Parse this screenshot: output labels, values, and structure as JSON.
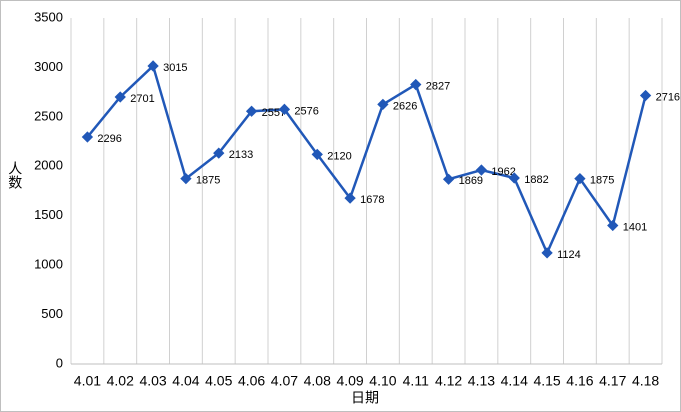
{
  "chart_data": {
    "type": "line",
    "x_label": "日期",
    "y_label": "人数",
    "categories": [
      "4.01",
      "4.02",
      "4.03",
      "4.04",
      "4.05",
      "4.06",
      "4.07",
      "4.08",
      "4.09",
      "4.10",
      "4.11",
      "4.12",
      "4.13",
      "4.14",
      "4.15",
      "4.16",
      "4.17",
      "4.18"
    ],
    "series": [
      {
        "name": "人数",
        "color": "#2158b8",
        "values": [
          2296,
          2701,
          3015,
          1875,
          2133,
          2557,
          2576,
          2120,
          1678,
          2626,
          2827,
          1869,
          1962,
          1882,
          1124,
          1875,
          1401,
          2716
        ]
      }
    ],
    "ylim": [
      0,
      3500
    ],
    "yticks": [
      0,
      500,
      1000,
      1500,
      2000,
      2500,
      3000,
      3500
    ],
    "data_labels": true
  }
}
